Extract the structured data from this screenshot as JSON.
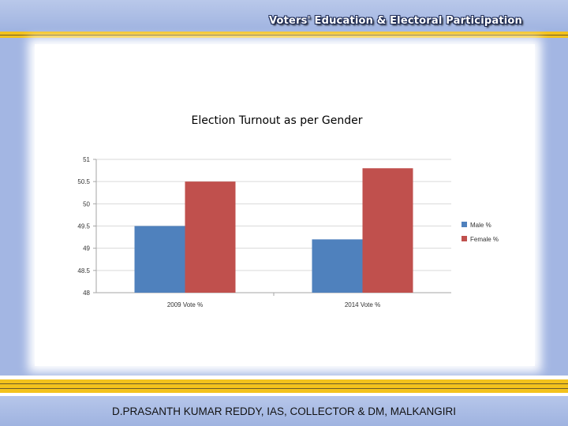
{
  "header": {
    "title": "Voters' Education & Electoral Participation"
  },
  "footer": {
    "text": "D.PRASANTH KUMAR REDDY, IAS, COLLECTOR & DM, MALKANGIRI"
  },
  "colors": {
    "male": "#4f81bd",
    "female": "#c0504d",
    "band": "#a3b6e3",
    "stripe": "#f3c21c"
  },
  "chart_data": {
    "type": "bar",
    "title": "Election Turnout as per Gender",
    "categories": [
      "2009 Vote %",
      "2014 Vote %"
    ],
    "series": [
      {
        "name": "Male %",
        "values": [
          49.5,
          49.2
        ]
      },
      {
        "name": "Female %",
        "values": [
          50.5,
          50.8
        ]
      }
    ],
    "ylim": [
      48,
      51
    ],
    "yticks": [
      "48",
      "48.5",
      "49",
      "49.5",
      "50",
      "50.5",
      "51"
    ],
    "grid": true,
    "legend": "right"
  }
}
